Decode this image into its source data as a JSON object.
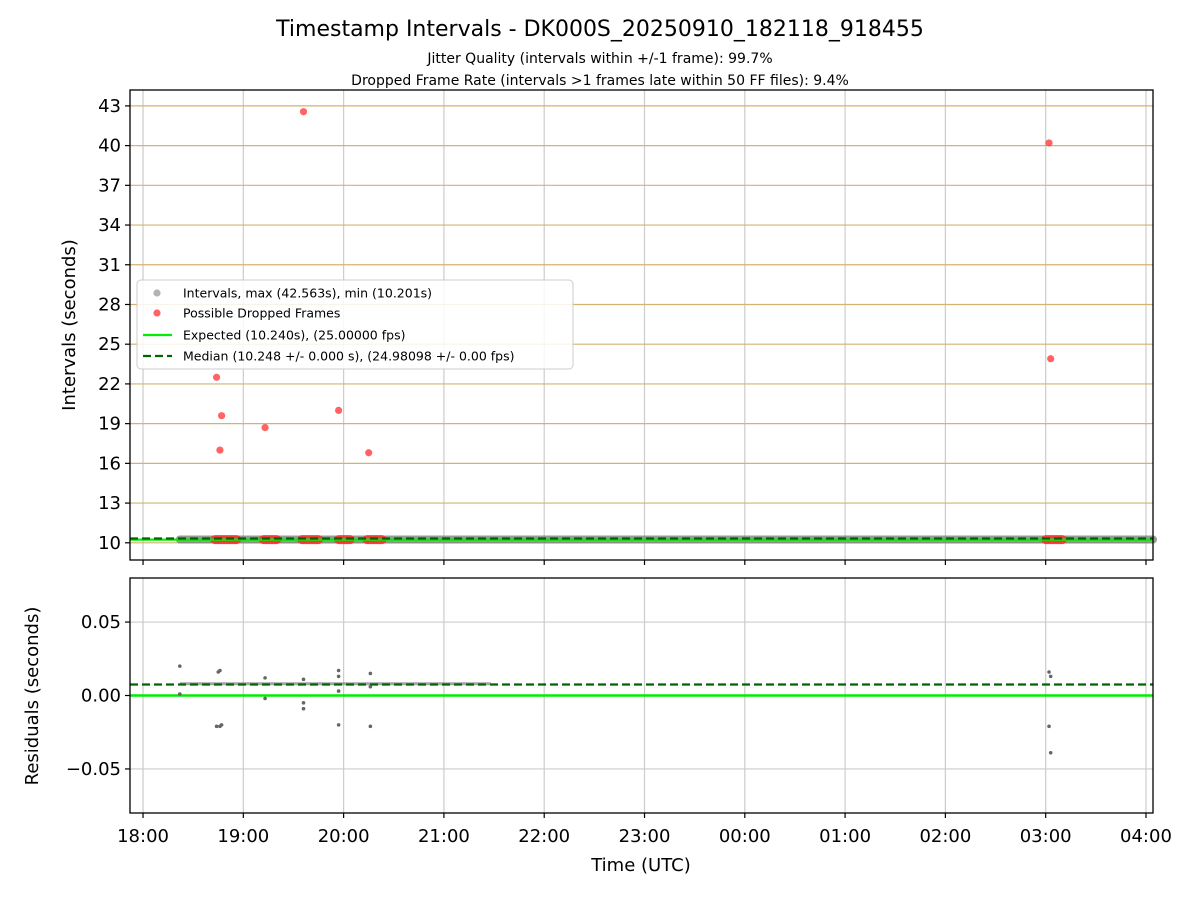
{
  "chart_data": [
    {
      "type": "scatter",
      "title": "Timestamp Intervals - DK000S_20250910_182118_918455",
      "subtitle_1": "Jitter Quality (intervals within +/-1 frame): 99.7%",
      "subtitle_2": "Dropped Frame Rate (intervals >1 frames late within 50 FF files): 9.4%",
      "ylabel": "Intervals (seconds)",
      "ylim": [
        8.7,
        44.2
      ],
      "yticks": [
        10,
        13,
        16,
        19,
        22,
        25,
        28,
        31,
        34,
        37,
        40,
        43
      ],
      "xlim_hours": [
        17.87,
        28.07
      ],
      "grid": true,
      "legend_position": "center-left",
      "legend": [
        "Intervals, max (42.563s), min (10.201s)",
        "Possible Dropped Frames",
        "Expected (10.240s), (25.00000 fps)",
        "Median (10.248 +/- 0.000 s), (24.98098 +/- 0.00 fps)"
      ],
      "expected_interval": 10.24,
      "median_interval": 10.248,
      "intervals_band": {
        "x_start": "18:22",
        "x_end": "04:05",
        "y": 10.248
      },
      "dropped_frames_outliers": [
        {
          "x": "18:44",
          "y": 22.5
        },
        {
          "x": "18:46",
          "y": 17.0
        },
        {
          "x": "18:47",
          "y": 19.6
        },
        {
          "x": "19:13",
          "y": 18.7
        },
        {
          "x": "19:36",
          "y": 42.56
        },
        {
          "x": "19:57",
          "y": 20.0
        },
        {
          "x": "20:15",
          "y": 16.8
        },
        {
          "x": "03:02",
          "y": 40.2
        },
        {
          "x": "03:03",
          "y": 23.9
        }
      ],
      "dropped_frames_clusters": [
        {
          "x_start": "18:43",
          "x_end": "18:56",
          "y": 10.24
        },
        {
          "x_start": "19:12",
          "x_end": "19:20",
          "y": 10.24
        },
        {
          "x_start": "19:35",
          "x_end": "19:45",
          "y": 10.24
        },
        {
          "x_start": "19:57",
          "x_end": "20:04",
          "y": 10.24
        },
        {
          "x_start": "20:14",
          "x_end": "20:23",
          "y": 10.24
        },
        {
          "x_start": "03:00",
          "x_end": "03:10",
          "y": 10.24
        }
      ],
      "colors": {
        "intervals": "#808080",
        "dropped": "#ff3030",
        "expected": "#00ee00",
        "median": "#006400",
        "hgrid": "#d4b36e",
        "vgrid": "#cccccc"
      }
    },
    {
      "type": "scatter",
      "xlabel": "Time (UTC)",
      "ylabel": "Residuals (seconds)",
      "ylim": [
        -0.08,
        0.08
      ],
      "yticks": [
        {
          "v": 0.05,
          "label": "0.05"
        },
        {
          "v": 0.0,
          "label": "0.00"
        },
        {
          "v": -0.05,
          "label": "−0.05"
        }
      ],
      "xticks": [
        {
          "h": 18,
          "label": "18:00"
        },
        {
          "h": 19,
          "label": "19:00"
        },
        {
          "h": 20,
          "label": "20:00"
        },
        {
          "h": 21,
          "label": "21:00"
        },
        {
          "h": 22,
          "label": "22:00"
        },
        {
          "h": 23,
          "label": "23:00"
        },
        {
          "h": 24,
          "label": "00:00"
        },
        {
          "h": 25,
          "label": "01:00"
        },
        {
          "h": 26,
          "label": "02:00"
        },
        {
          "h": 27,
          "label": "03:00"
        },
        {
          "h": 28,
          "label": "04:00"
        }
      ],
      "expected_residual": 0.0,
      "median_residual": 0.0075,
      "residuals_band": {
        "x_start": "18:22",
        "x_end": "21:28",
        "y": 0.008
      },
      "residual_points": [
        {
          "x": "18:22",
          "y": 0.02
        },
        {
          "x": "18:22",
          "y": 0.001
        },
        {
          "x": "18:45",
          "y": 0.016
        },
        {
          "x": "18:46",
          "y": 0.017
        },
        {
          "x": "18:44",
          "y": -0.021
        },
        {
          "x": "18:46",
          "y": -0.021
        },
        {
          "x": "18:47",
          "y": -0.02
        },
        {
          "x": "19:13",
          "y": 0.012
        },
        {
          "x": "19:13",
          "y": -0.002
        },
        {
          "x": "19:36",
          "y": 0.011
        },
        {
          "x": "19:36",
          "y": -0.005
        },
        {
          "x": "19:36",
          "y": -0.009
        },
        {
          "x": "19:57",
          "y": 0.017
        },
        {
          "x": "19:57",
          "y": 0.013
        },
        {
          "x": "19:57",
          "y": 0.003
        },
        {
          "x": "19:57",
          "y": -0.02
        },
        {
          "x": "20:16",
          "y": 0.015
        },
        {
          "x": "20:16",
          "y": 0.006
        },
        {
          "x": "20:16",
          "y": -0.021
        },
        {
          "x": "03:02",
          "y": 0.016
        },
        {
          "x": "03:03",
          "y": 0.013
        },
        {
          "x": "03:02",
          "y": -0.021
        },
        {
          "x": "03:03",
          "y": -0.039
        }
      ]
    }
  ]
}
